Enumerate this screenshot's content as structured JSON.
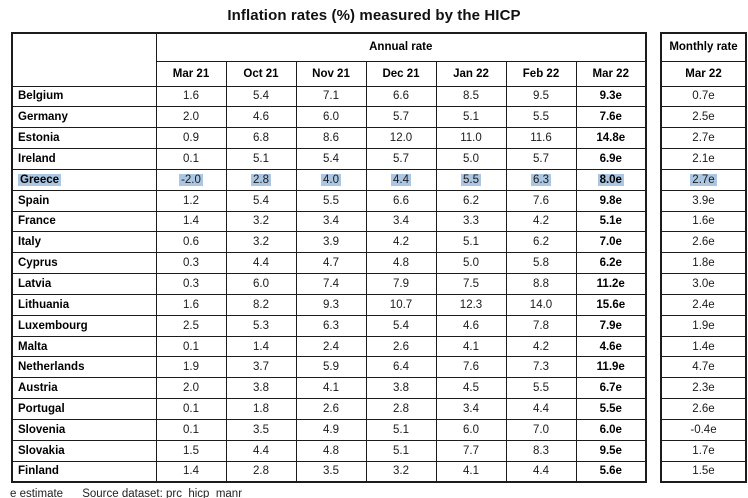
{
  "title": "Inflation rates (%) measured by the HICP",
  "footer": "e estimate      Source dataset: prc_hicp_manr",
  "colors": {
    "row_highlight": "#aac6e2",
    "border": "#1c1c1c"
  },
  "table": {
    "annual_header": "Annual rate",
    "monthly_header": "Monthly rate",
    "annual_columns": [
      "Mar 21",
      "Oct 21",
      "Nov 21",
      "Dec 21",
      "Jan 22",
      "Feb 22",
      "Mar 22"
    ],
    "monthly_column": "Mar 22",
    "highlighted_country": "Greece",
    "rows": [
      {
        "country": "Belgium",
        "annual": [
          "1.6",
          "5.4",
          "7.1",
          "6.6",
          "8.5",
          "9.5",
          "9.3e"
        ],
        "monthly": "0.7e",
        "highlight": false
      },
      {
        "country": "Germany",
        "annual": [
          "2.0",
          "4.6",
          "6.0",
          "5.7",
          "5.1",
          "5.5",
          "7.6e"
        ],
        "monthly": "2.5e",
        "highlight": false
      },
      {
        "country": "Estonia",
        "annual": [
          "0.9",
          "6.8",
          "8.6",
          "12.0",
          "11.0",
          "11.6",
          "14.8e"
        ],
        "monthly": "2.7e",
        "highlight": false
      },
      {
        "country": "Ireland",
        "annual": [
          "0.1",
          "5.1",
          "5.4",
          "5.7",
          "5.0",
          "5.7",
          "6.9e"
        ],
        "monthly": "2.1e",
        "highlight": false
      },
      {
        "country": "Greece",
        "annual": [
          "-2.0",
          "2.8",
          "4.0",
          "4.4",
          "5.5",
          "6.3",
          "8.0e"
        ],
        "monthly": "2.7e",
        "highlight": true
      },
      {
        "country": "Spain",
        "annual": [
          "1.2",
          "5.4",
          "5.5",
          "6.6",
          "6.2",
          "7.6",
          "9.8e"
        ],
        "monthly": "3.9e",
        "highlight": false
      },
      {
        "country": "France",
        "annual": [
          "1.4",
          "3.2",
          "3.4",
          "3.4",
          "3.3",
          "4.2",
          "5.1e"
        ],
        "monthly": "1.6e",
        "highlight": false
      },
      {
        "country": "Italy",
        "annual": [
          "0.6",
          "3.2",
          "3.9",
          "4.2",
          "5.1",
          "6.2",
          "7.0e"
        ],
        "monthly": "2.6e",
        "highlight": false
      },
      {
        "country": "Cyprus",
        "annual": [
          "0.3",
          "4.4",
          "4.7",
          "4.8",
          "5.0",
          "5.8",
          "6.2e"
        ],
        "monthly": "1.8e",
        "highlight": false
      },
      {
        "country": "Latvia",
        "annual": [
          "0.3",
          "6.0",
          "7.4",
          "7.9",
          "7.5",
          "8.8",
          "11.2e"
        ],
        "monthly": "3.0e",
        "highlight": false
      },
      {
        "country": "Lithuania",
        "annual": [
          "1.6",
          "8.2",
          "9.3",
          "10.7",
          "12.3",
          "14.0",
          "15.6e"
        ],
        "monthly": "2.4e",
        "highlight": false
      },
      {
        "country": "Luxembourg",
        "annual": [
          "2.5",
          "5.3",
          "6.3",
          "5.4",
          "4.6",
          "7.8",
          "7.9e"
        ],
        "monthly": "1.9e",
        "highlight": false
      },
      {
        "country": "Malta",
        "annual": [
          "0.1",
          "1.4",
          "2.4",
          "2.6",
          "4.1",
          "4.2",
          "4.6e"
        ],
        "monthly": "1.4e",
        "highlight": false
      },
      {
        "country": "Netherlands",
        "annual": [
          "1.9",
          "3.7",
          "5.9",
          "6.4",
          "7.6",
          "7.3",
          "11.9e"
        ],
        "monthly": "4.7e",
        "highlight": false
      },
      {
        "country": "Austria",
        "annual": [
          "2.0",
          "3.8",
          "4.1",
          "3.8",
          "4.5",
          "5.5",
          "6.7e"
        ],
        "monthly": "2.3e",
        "highlight": false
      },
      {
        "country": "Portugal",
        "annual": [
          "0.1",
          "1.8",
          "2.6",
          "2.8",
          "3.4",
          "4.4",
          "5.5e"
        ],
        "monthly": "2.6e",
        "highlight": false
      },
      {
        "country": "Slovenia",
        "annual": [
          "0.1",
          "3.5",
          "4.9",
          "5.1",
          "6.0",
          "7.0",
          "6.0e"
        ],
        "monthly": "-0.4e",
        "highlight": false
      },
      {
        "country": "Slovakia",
        "annual": [
          "1.5",
          "4.4",
          "4.8",
          "5.1",
          "7.7",
          "8.3",
          "9.5e"
        ],
        "monthly": "1.7e",
        "highlight": false
      },
      {
        "country": "Finland",
        "annual": [
          "1.4",
          "2.8",
          "3.5",
          "3.2",
          "4.1",
          "4.4",
          "5.6e"
        ],
        "monthly": "1.5e",
        "highlight": false
      }
    ]
  }
}
